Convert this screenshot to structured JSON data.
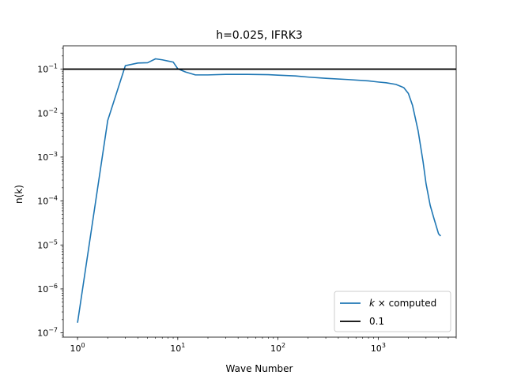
{
  "chart_data": {
    "type": "line",
    "title": "h=0.025, IFRK3",
    "xlabel": "Wave Number",
    "ylabel": "n(k)",
    "xscale": "log",
    "yscale": "log",
    "xlim": [
      0.72,
      6000
    ],
    "ylim": [
      8e-08,
      0.34
    ],
    "x_ticks": [
      {
        "value": 1,
        "base": "10",
        "exp": "0"
      },
      {
        "value": 10,
        "base": "10",
        "exp": "1"
      },
      {
        "value": 100,
        "base": "10",
        "exp": "2"
      },
      {
        "value": 1000,
        "base": "10",
        "exp": "3"
      }
    ],
    "y_ticks": [
      {
        "value": 1e-07,
        "base": "10",
        "exp": "−7"
      },
      {
        "value": 1e-06,
        "base": "10",
        "exp": "−6"
      },
      {
        "value": 1e-05,
        "base": "10",
        "exp": "−5"
      },
      {
        "value": 0.0001,
        "base": "10",
        "exp": "−4"
      },
      {
        "value": 0.001,
        "base": "10",
        "exp": "−3"
      },
      {
        "value": 0.01,
        "base": "10",
        "exp": "−2"
      },
      {
        "value": 0.1,
        "base": "10",
        "exp": "−1"
      }
    ],
    "legend_position": "lower-right",
    "series": [
      {
        "name": "k × computed",
        "legend_symbol": "k",
        "legend_rest": " × computed",
        "color": "#1f77b4",
        "x": [
          1,
          2,
          3,
          4,
          5,
          6,
          7,
          8,
          9,
          10,
          12,
          15,
          20,
          30,
          50,
          80,
          100,
          150,
          200,
          300,
          500,
          800,
          1000,
          1200,
          1500,
          1800,
          2000,
          2200,
          2500,
          2800,
          3000,
          3300,
          3600,
          4000,
          4200
        ],
        "y": [
          1.7e-07,
          0.0068,
          0.12,
          0.138,
          0.14,
          0.172,
          0.163,
          0.153,
          0.145,
          0.102,
          0.086,
          0.074,
          0.074,
          0.076,
          0.076,
          0.075,
          0.073,
          0.07,
          0.066,
          0.062,
          0.058,
          0.054,
          0.051,
          0.049,
          0.045,
          0.038,
          0.028,
          0.015,
          0.004,
          0.0008,
          0.00025,
          8e-05,
          4e-05,
          1.8e-05,
          1.6e-05
        ]
      },
      {
        "name": "0.1",
        "color": "#000000",
        "hline": 0.1
      }
    ]
  }
}
